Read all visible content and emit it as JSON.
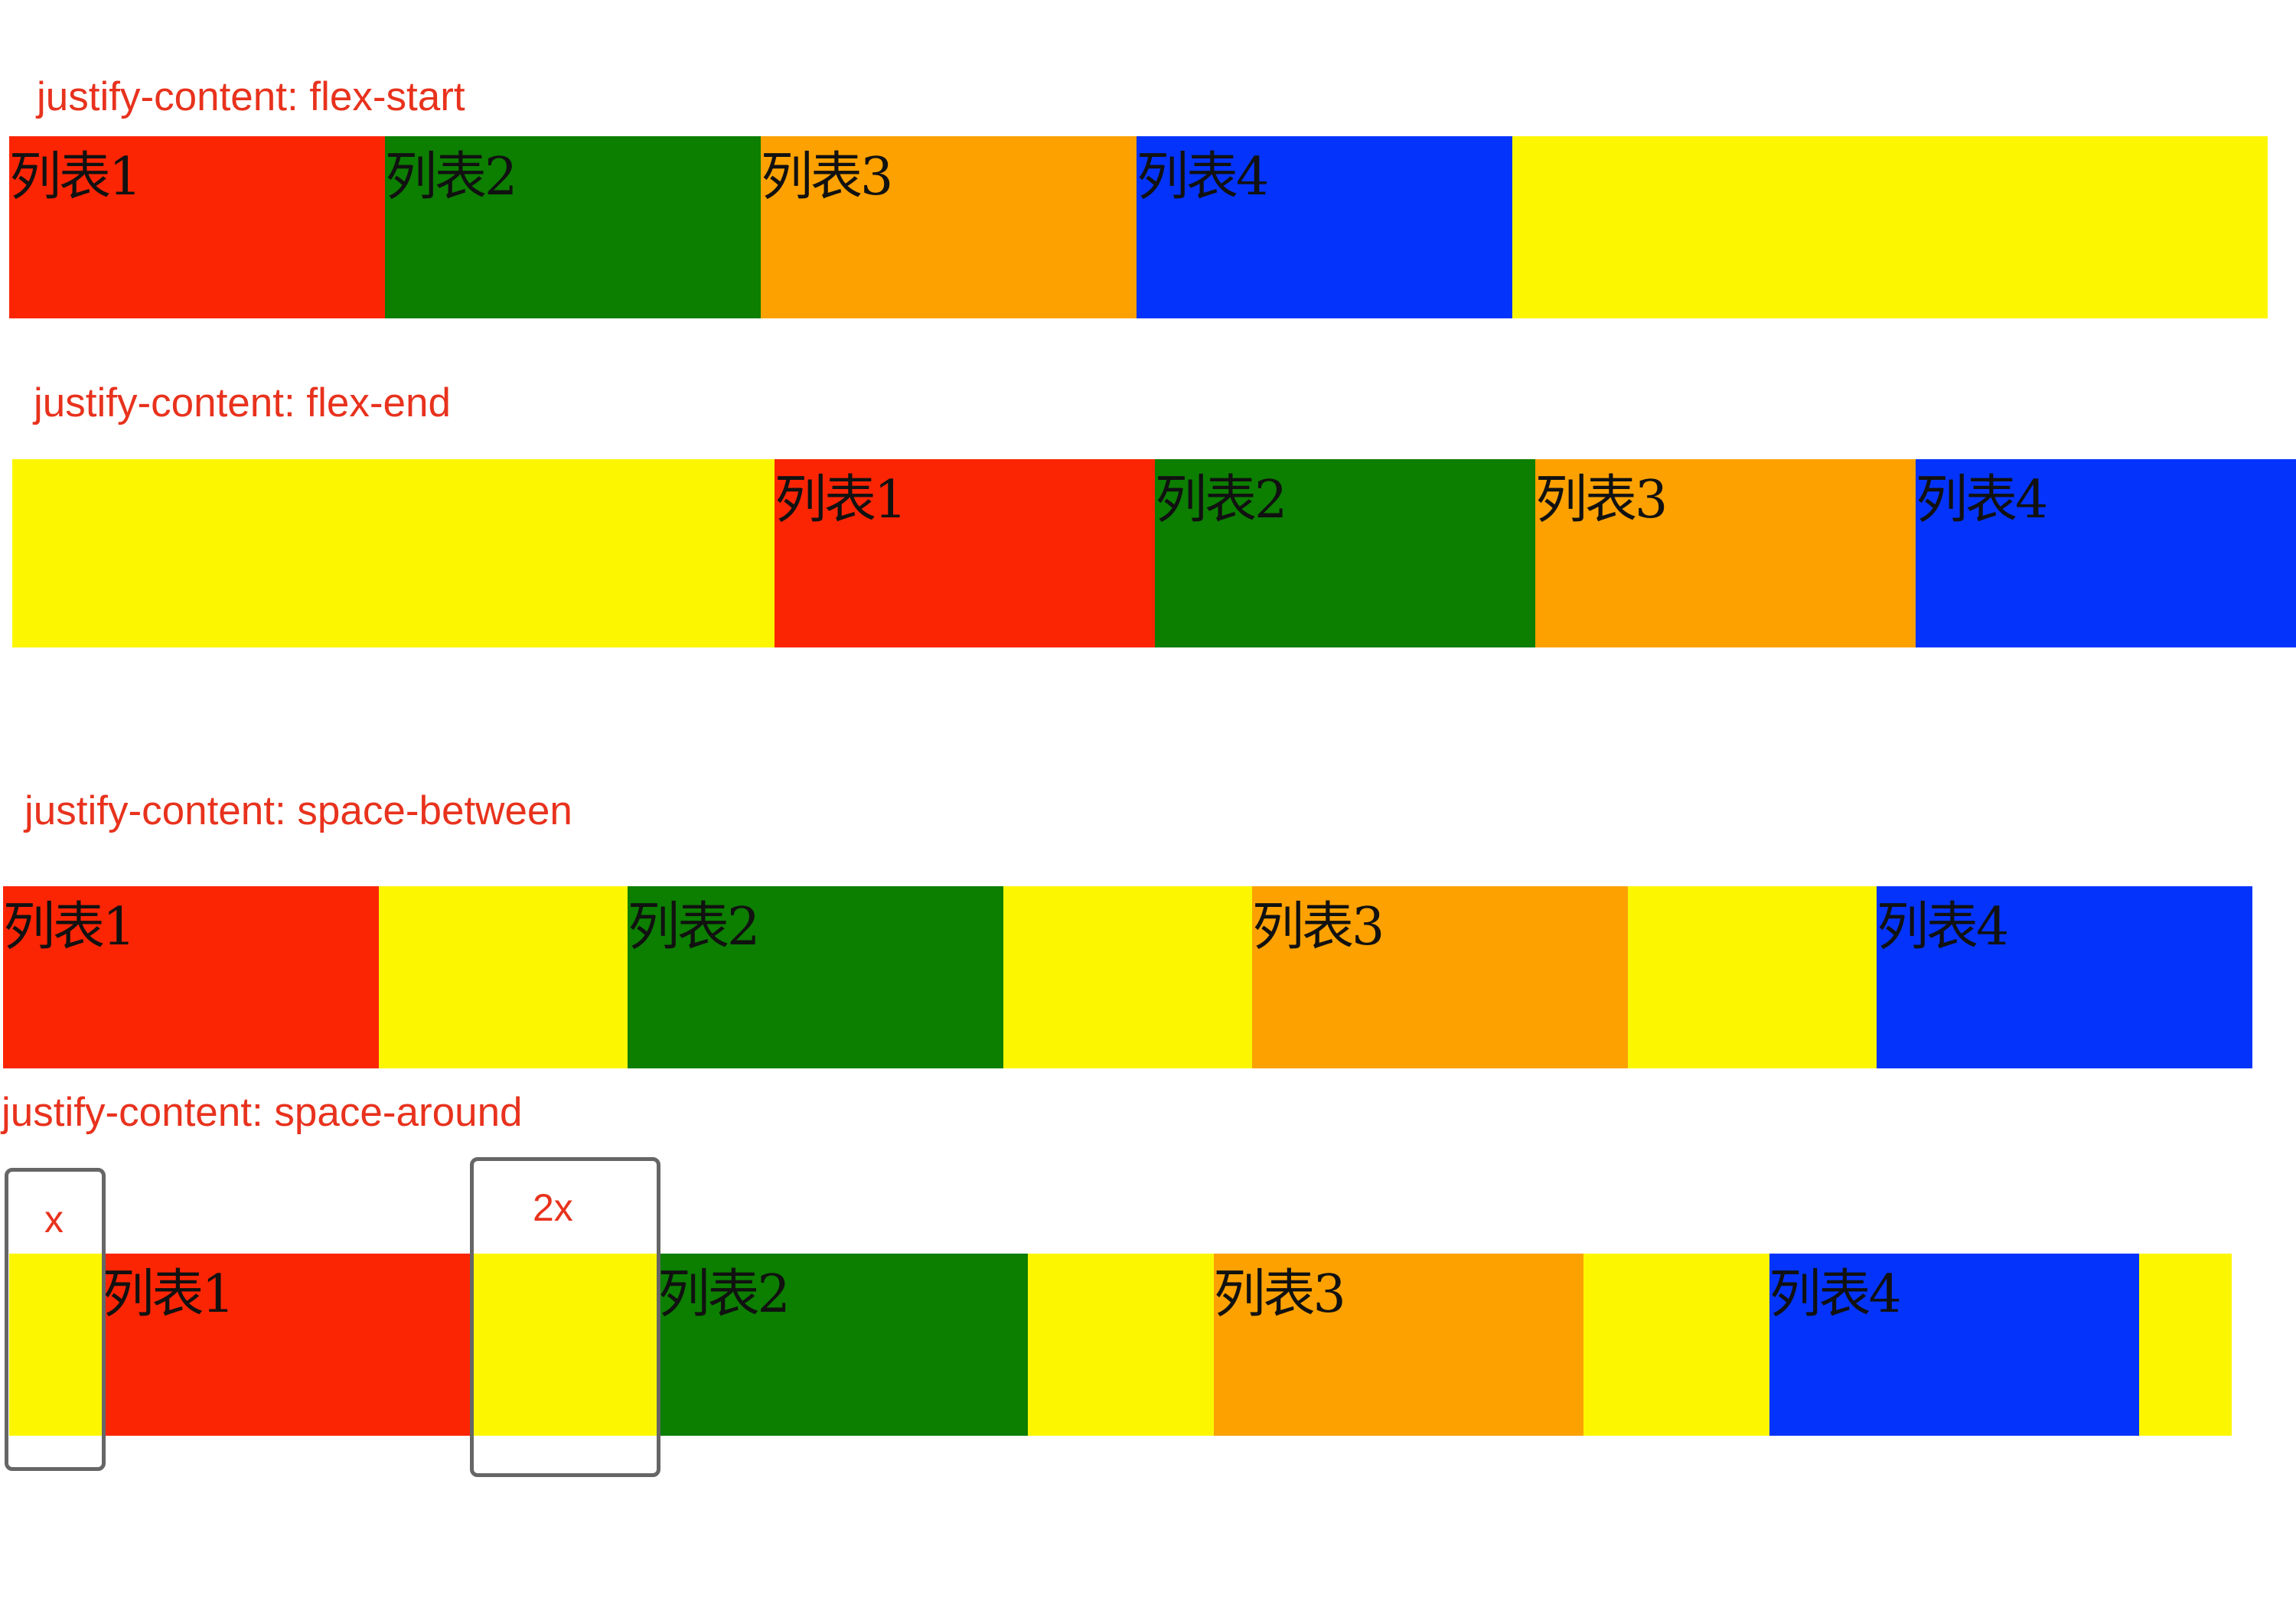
{
  "colors": {
    "container": "#fcf700",
    "item1": "#fb2504",
    "item2": "#0c7e00",
    "item3": "#fca100",
    "item4": "#0434fb",
    "label": "#e8321d",
    "marker_border": "#666666"
  },
  "items": [
    "列表1",
    "列表2",
    "列表3",
    "列表4"
  ],
  "demos": [
    {
      "label": "justify-content: flex-start",
      "justify": "flex-start"
    },
    {
      "label": "justify-content: flex-end",
      "justify": "flex-end"
    },
    {
      "label": "justify-content: space-between",
      "justify": "space-between"
    },
    {
      "label": "justify-content: space-around",
      "justify": "space-around"
    }
  ],
  "markers": [
    {
      "label": "x"
    },
    {
      "label": "2x"
    }
  ]
}
